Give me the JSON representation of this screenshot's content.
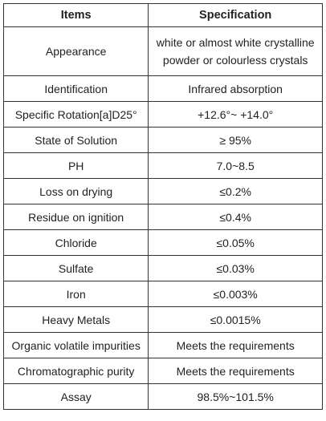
{
  "table": {
    "headers": [
      "Items",
      "Specification"
    ],
    "rows": [
      {
        "item": "Appearance",
        "spec": "white or almost white crystalline powder or colourless crystals"
      },
      {
        "item": "Identification",
        "spec": "Infrared absorption"
      },
      {
        "item": "Specific Rotation[a]D25°",
        "spec": "+12.6°~ +14.0°"
      },
      {
        "item": "State of Solution",
        "spec": "≥ 95%"
      },
      {
        "item": "PH",
        "spec": "7.0~8.5"
      },
      {
        "item": "Loss on drying",
        "spec": "≤0.2%"
      },
      {
        "item": "Residue on ignition",
        "spec": "≤0.4%"
      },
      {
        "item": "Chloride",
        "spec": "≤0.05%"
      },
      {
        "item": "Sulfate",
        "spec": "≤0.03%"
      },
      {
        "item": "Iron",
        "spec": "≤0.003%"
      },
      {
        "item": "Heavy Metals",
        "spec": "≤0.0015%"
      },
      {
        "item": "Organic volatile impurities",
        "spec": "Meets the requirements"
      },
      {
        "item": "Chromatographic purity",
        "spec": "Meets the requirements"
      },
      {
        "item": "Assay",
        "spec": "98.5%~101.5%"
      }
    ]
  }
}
